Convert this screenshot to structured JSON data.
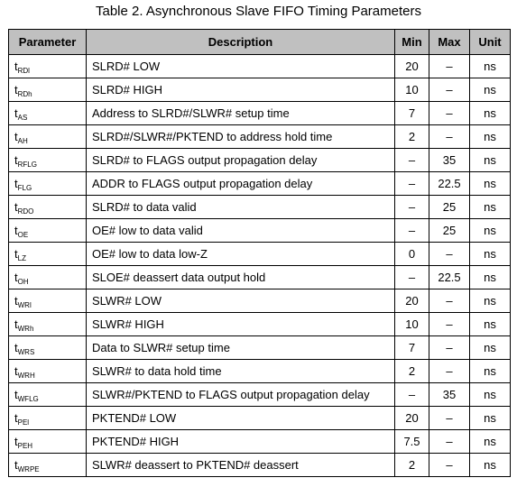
{
  "caption": "Table 2. Asynchronous Slave FIFO Timing Parameters",
  "headers": {
    "parameter": "Parameter",
    "description": "Description",
    "min": "Min",
    "max": "Max",
    "unit": "Unit"
  },
  "rows": [
    {
      "sym": "t",
      "sub": "RDl",
      "desc": "SLRD# LOW",
      "min": "20",
      "max": "–",
      "unit": "ns"
    },
    {
      "sym": "t",
      "sub": "RDh",
      "desc": "SLRD# HIGH",
      "min": "10",
      "max": "–",
      "unit": "ns"
    },
    {
      "sym": "t",
      "sub": "AS",
      "desc": "Address to SLRD#/SLWR# setup time",
      "min": "7",
      "max": "–",
      "unit": "ns"
    },
    {
      "sym": "t",
      "sub": "AH",
      "desc": "SLRD#/SLWR#/PKTEND to address hold time",
      "min": "2",
      "max": "–",
      "unit": "ns"
    },
    {
      "sym": "t",
      "sub": "RFLG",
      "desc": "SLRD# to FLAGS output propagation delay",
      "min": "–",
      "max": "35",
      "unit": "ns"
    },
    {
      "sym": "t",
      "sub": "FLG",
      "desc": "ADDR to FLAGS output propagation delay",
      "min": "–",
      "max": "22.5",
      "unit": "ns"
    },
    {
      "sym": "t",
      "sub": "RDO",
      "desc": "SLRD# to data valid",
      "min": "–",
      "max": "25",
      "unit": "ns"
    },
    {
      "sym": "t",
      "sub": "OE",
      "desc": "OE# low to data valid",
      "min": "–",
      "max": "25",
      "unit": "ns"
    },
    {
      "sym": "t",
      "sub": "LZ",
      "desc": "OE# low to data low-Z",
      "min": "0",
      "max": "–",
      "unit": "ns"
    },
    {
      "sym": "t",
      "sub": "OH",
      "desc": "SLOE# deassert data output hold",
      "min": "–",
      "max": "22.5",
      "unit": "ns"
    },
    {
      "sym": "t",
      "sub": "WRl",
      "desc": "SLWR# LOW",
      "min": "20",
      "max": "–",
      "unit": "ns"
    },
    {
      "sym": "t",
      "sub": "WRh",
      "desc": "SLWR# HIGH",
      "min": "10",
      "max": "–",
      "unit": "ns"
    },
    {
      "sym": "t",
      "sub": "WRS",
      "desc": "Data to SLWR# setup time",
      "min": "7",
      "max": "–",
      "unit": "ns"
    },
    {
      "sym": "t",
      "sub": "WRH",
      "desc": "SLWR# to data hold time",
      "min": "2",
      "max": "–",
      "unit": "ns"
    },
    {
      "sym": "t",
      "sub": "WFLG",
      "desc": "SLWR#/PKTEND to FLAGS output propagation delay",
      "min": "–",
      "max": "35",
      "unit": "ns"
    },
    {
      "sym": "t",
      "sub": "PEl",
      "desc": "PKTEND# LOW",
      "min": "20",
      "max": "–",
      "unit": "ns"
    },
    {
      "sym": "t",
      "sub": "PEH",
      "desc": "PKTEND# HIGH",
      "min": "7.5",
      "max": "–",
      "unit": "ns"
    },
    {
      "sym": "t",
      "sub": "WRPE",
      "desc": "SLWR# deassert to PKTEND# deassert",
      "min": "2",
      "max": "–",
      "unit": "ns"
    }
  ],
  "colors": {
    "header_bg": "#c0c0c0",
    "border": "#000000",
    "text": "#000000"
  }
}
